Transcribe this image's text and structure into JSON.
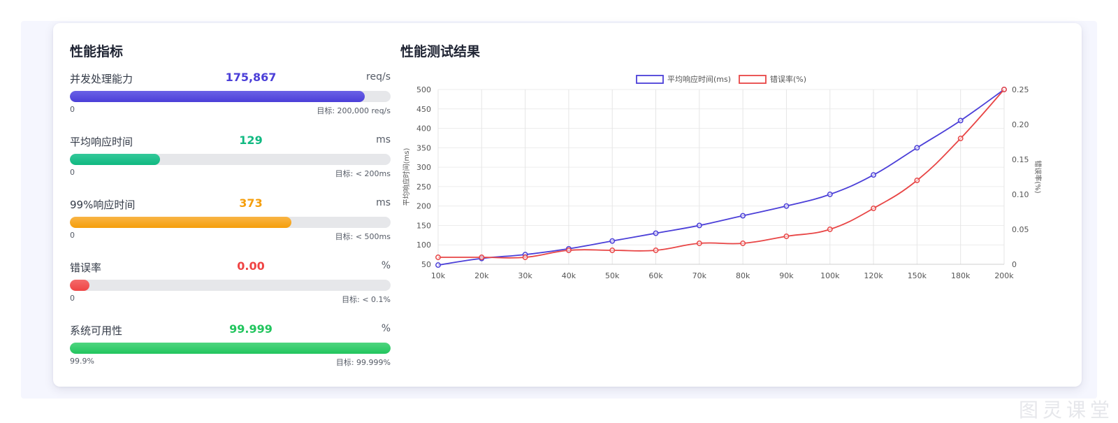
{
  "left_panel": {
    "title": "性能指标",
    "metrics": [
      {
        "label": "并发处理能力",
        "value": "175,867",
        "unit": "req/s",
        "min_label": "0",
        "target_label": "目标: 200,000 req/s",
        "fill_fraction": 0.92,
        "color": "#4b3fd8",
        "color_light": "#6a61e6"
      },
      {
        "label": "平均响应时间",
        "value": "129",
        "unit": "ms",
        "min_label": "0",
        "target_label": "目标: < 200ms",
        "fill_fraction": 0.28,
        "color": "#10b981",
        "color_light": "#34c99a"
      },
      {
        "label": "99%响应时间",
        "value": "373",
        "unit": "ms",
        "min_label": "0",
        "target_label": "目标: < 500ms",
        "fill_fraction": 0.69,
        "color": "#f59e0b",
        "color_light": "#f9b545"
      },
      {
        "label": "错误率",
        "value": "0.00",
        "unit": "%",
        "min_label": "0",
        "target_label": "目标: < 0.1%",
        "fill_fraction": 0.06,
        "color": "#ef4444",
        "color_light": "#f46a6a"
      },
      {
        "label": "系统可用性",
        "value": "99.999",
        "unit": "%",
        "min_label": "99.9%",
        "target_label": "目标: 99.999%",
        "fill_fraction": 1.0,
        "color": "#22c55e",
        "color_light": "#4fd67f"
      }
    ]
  },
  "chart_panel": {
    "title": "性能测试结果"
  },
  "watermark": "图灵课堂",
  "chart_data": {
    "type": "line",
    "x": [
      "10k",
      "20k",
      "30k",
      "40k",
      "50k",
      "60k",
      "70k",
      "80k",
      "90k",
      "100k",
      "120k",
      "150k",
      "180k",
      "200k"
    ],
    "series": [
      {
        "name": "平均响应时间(ms)",
        "axis": "left",
        "color": "#4b3fd8",
        "values": [
          48,
          65,
          75,
          90,
          110,
          130,
          150,
          175,
          200,
          230,
          280,
          350,
          420,
          500
        ]
      },
      {
        "name": "错误率(%)",
        "axis": "right",
        "color": "#e84545",
        "values": [
          0.01,
          0.01,
          0.01,
          0.02,
          0.02,
          0.02,
          0.03,
          0.03,
          0.04,
          0.05,
          0.08,
          0.12,
          0.18,
          0.25
        ]
      }
    ],
    "ylabel": "平均响应时间(ms)",
    "y2label": "错误率(%)",
    "ylim": [
      50,
      500
    ],
    "yticks": [
      50,
      100,
      150,
      200,
      250,
      300,
      350,
      400,
      450,
      500
    ],
    "y2lim": [
      0,
      0.25
    ],
    "y2ticks": [
      "0",
      "0.05",
      "0.10",
      "0.15",
      "0.20",
      "0.25"
    ],
    "legend": "top-center",
    "grid": true
  }
}
